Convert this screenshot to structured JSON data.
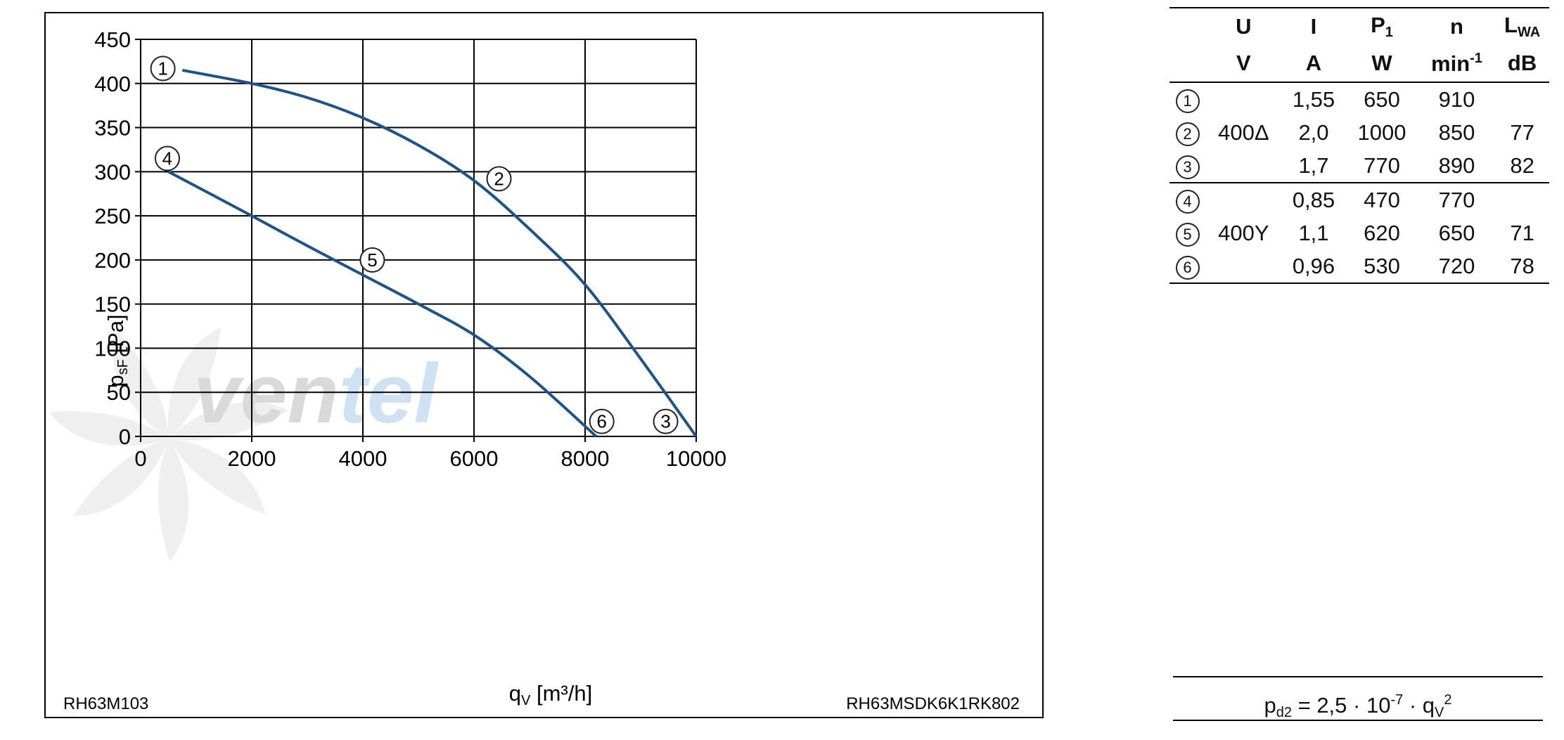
{
  "chart_data": {
    "type": "line",
    "xlabel": "q",
    "xlabel_sub": "V",
    "xlabel_unit": " [m³/h]",
    "ylabel": "p",
    "ylabel_sub": "sF",
    "ylabel_unit": " [Pa]",
    "xlim": [
      0,
      10000
    ],
    "ylim": [
      0,
      450
    ],
    "x_ticks": [
      0,
      2000,
      4000,
      6000,
      8000,
      10000
    ],
    "y_ticks": [
      0,
      50,
      100,
      150,
      200,
      250,
      300,
      350,
      400,
      450
    ],
    "grid": true,
    "line_color": "#1d5387",
    "series": [
      {
        "x": [
          750,
          2000,
          3000,
          4000,
          5000,
          6000,
          7000,
          8000,
          9000,
          10000
        ],
        "values": [
          415,
          400,
          384,
          361,
          330,
          290,
          235,
          172,
          88,
          0
        ]
      },
      {
        "x": [
          500,
          2000,
          3000,
          4000,
          5000,
          6000,
          7000,
          8200
        ],
        "values": [
          300,
          250,
          216,
          183,
          150,
          115,
          68,
          0
        ]
      }
    ],
    "markers": [
      {
        "label": "1",
        "x": 400,
        "y": 417
      },
      {
        "label": "2",
        "x": 6450,
        "y": 292
      },
      {
        "label": "3",
        "x": 9450,
        "y": 17
      },
      {
        "label": "4",
        "x": 480,
        "y": 315
      },
      {
        "label": "5",
        "x": 4170,
        "y": 200
      },
      {
        "label": "6",
        "x": 8300,
        "y": 17
      }
    ],
    "footer_left": "RH63M103",
    "footer_right": "RH63MSDK6K1RK802"
  },
  "watermark": {
    "text_grey": "ven",
    "text_blue": "tel",
    "color_grey": "#d9d9d9",
    "color_blue": "#cfe2f3"
  },
  "table": {
    "header1": [
      "U",
      "I",
      "P",
      "n",
      "L"
    ],
    "header1_subs": [
      "",
      "",
      "1",
      "",
      "WA"
    ],
    "header2": [
      "V",
      "A",
      "W",
      "min",
      "dB"
    ],
    "header2_sup": "-1",
    "rows": [
      {
        "id": "1",
        "U": "",
        "I": "1,55",
        "P": "650",
        "n": "910",
        "L": ""
      },
      {
        "id": "2",
        "U": "400Δ",
        "I": "2,0",
        "P": "1000",
        "n": "850",
        "L": "77"
      },
      {
        "id": "3",
        "U": "",
        "I": "1,7",
        "P": "770",
        "n": "890",
        "L": "82"
      },
      {
        "id": "4",
        "U": "",
        "I": "0,85",
        "P": "470",
        "n": "770",
        "L": ""
      },
      {
        "id": "5",
        "U": "400Y",
        "I": "1,1",
        "P": "620",
        "n": "650",
        "L": "71"
      },
      {
        "id": "6",
        "U": "",
        "I": "0,96",
        "P": "530",
        "n": "720",
        "L": "78"
      }
    ]
  },
  "formula": {
    "lhs": "p",
    "lhs_sub": "d2",
    "mid": " = 2,5 · 10",
    "exp": "-7",
    "mid2": " · q",
    "q_sub": "V",
    "q_sup": "2"
  }
}
